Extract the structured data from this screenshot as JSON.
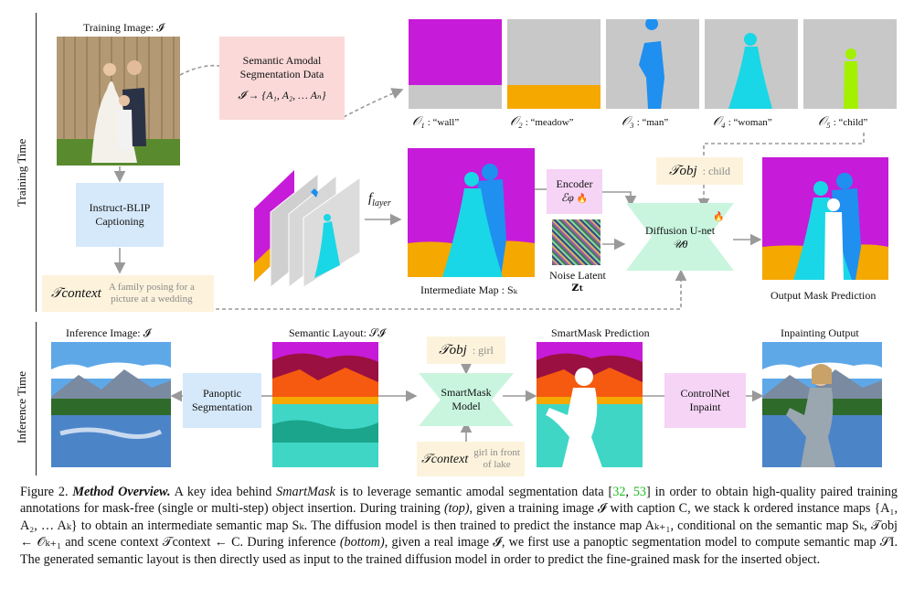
{
  "row_labels": {
    "training": "Training Time",
    "inference": "Inference Time"
  },
  "training": {
    "image_label": "Training Image: 𝓘",
    "semantic_box": {
      "line1": "Semantic Amodal",
      "line2": "Segmentation Data",
      "formula": "𝓘 → {A₁, A₂, … Aₙ}"
    },
    "objects": [
      {
        "sym": "𝒪₁",
        "name": ": “wall”",
        "color": "#c61bd8"
      },
      {
        "sym": "𝒪₂",
        "name": ": “meadow”",
        "color": "#f5a800"
      },
      {
        "sym": "𝒪₃",
        "name": ": “man”",
        "color": "#1f8ff0"
      },
      {
        "sym": "𝒪₄",
        "name": ": “woman”",
        "color": "#19d7e6"
      },
      {
        "sym": "𝒪₅",
        "name": ": “child”",
        "color": "#a3f000"
      }
    ],
    "blip_box": {
      "line1": "Instruct-BLIP",
      "line2": "Captioning"
    },
    "context_box": {
      "sym": "𝒯context",
      "line1": "A family posing for a",
      "line2": "picture at a wedding"
    },
    "f_layer": "f",
    "f_layer_sub": "layer",
    "intermediate_label": "Intermediate Map : Sₖ",
    "encoder_box": {
      "line1": "Encoder",
      "line2": "ℰφ",
      "fire": "🔥"
    },
    "noise_label": {
      "line1": "Noise Latent",
      "line2": "𝐳ₜ"
    },
    "obj_box": {
      "sym": "𝒯obj",
      "value": ": child"
    },
    "unet_box": {
      "line1": "Diffusion U-net",
      "line2": "𝒰θ",
      "fire": "🔥"
    },
    "output_label": "Output Mask Prediction"
  },
  "inference": {
    "image_label": "Inference Image: 𝓘",
    "panoptic_box": {
      "line1": "Panoptic",
      "line2": "Segmentation"
    },
    "layout_label": "Semantic Layout: 𝒮𝓘",
    "obj_box": {
      "sym": "𝒯obj",
      "value": ": girl"
    },
    "smartmask_box": {
      "line1": "SmartMask",
      "line2": "Model"
    },
    "context_box": {
      "sym": "𝒯context",
      "line1": "girl in front",
      "line2": "of lake"
    },
    "prediction_label": "SmartMask Prediction",
    "controlnet_box": {
      "line1": "ControlNet",
      "line2": "Inpaint"
    },
    "output_label": "Inpainting Output"
  },
  "caption": {
    "fig": "Figure 2.",
    "title": "Method Overview.",
    "t1": " A key idea behind ",
    "smartmask": "SmartMask",
    "t2": " is to leverage semantic amodal segmentation data [",
    "c1": "32",
    "sep": ", ",
    "c2": "53",
    "t3": "] in order to obtain high-quality paired training annotations for mask-free (single or multi-step) object insertion. During training ",
    "top": "(top)",
    "t4": ", given a training image 𝓘 with caption C, we stack k ordered instance maps {A₁, A₂, … Aₖ} to obtain an intermediate semantic map Sₖ. The diffusion model is then trained to predict the instance map Aₖ₊₁, conditional on the semantic map Sₖ, 𝒯obj ← 𝒪ₖ₊₁ and scene context 𝒯context ← C. During inference ",
    "bottom": "(bottom)",
    "t5": ", given a real image 𝓘, we first use a panoptic segmentation model to compute semantic map 𝒮I. The generated semantic layout is then directly used as input to the trained diffusion model in order to predict the fine-grained mask for the inserted object."
  },
  "colors": {
    "magenta": "#c61bd8",
    "orange": "#f5a800",
    "blue": "#1f8ff0",
    "cyan": "#19d7e6",
    "lime": "#a3f000",
    "grey_mask": "#c8c8c8",
    "maroon": "#9a1040",
    "teal": "#3fd6c6"
  }
}
